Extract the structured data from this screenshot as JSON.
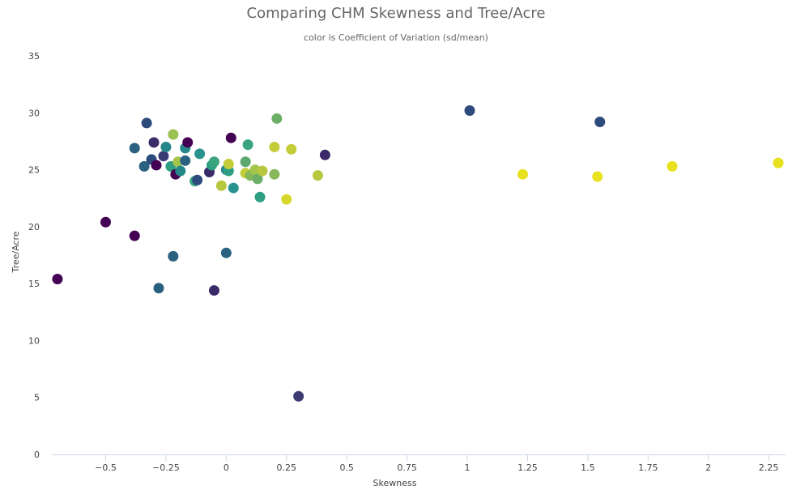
{
  "chart_data": {
    "type": "scatter",
    "title": "Comparing CHM Skewness and Tree/Acre",
    "subtitle": "color is Coefficient of Variation (sd/mean)",
    "xlabel": "Skewness",
    "ylabel": "Tree/Acre",
    "xlim": [
      -0.72,
      2.32
    ],
    "ylim": [
      0,
      35
    ],
    "x_ticks": [
      -0.5,
      -0.25,
      0,
      0.25,
      0.5,
      0.75,
      1,
      1.25,
      1.5,
      1.75,
      2,
      2.25
    ],
    "x_tick_labels": [
      "−0.5",
      "−0.25",
      "0",
      "0.25",
      "0.5",
      "0.75",
      "1",
      "1.25",
      "1.5",
      "1.75",
      "2",
      "2.25"
    ],
    "y_ticks": [
      0,
      5,
      10,
      15,
      20,
      25,
      30,
      35
    ],
    "y_tick_labels": [
      "0",
      "5",
      "10",
      "15",
      "20",
      "25",
      "30",
      "35"
    ],
    "grid": false,
    "legend": "none",
    "color_scale": "viridis",
    "points": [
      {
        "x": -0.7,
        "y": 15.4,
        "color": "#440154"
      },
      {
        "x": -0.5,
        "y": 20.4,
        "color": "#440154"
      },
      {
        "x": -0.38,
        "y": 19.2,
        "color": "#440154"
      },
      {
        "x": -0.38,
        "y": 26.9,
        "color": "#2a6180"
      },
      {
        "x": -0.34,
        "y": 25.3,
        "color": "#2a6180"
      },
      {
        "x": -0.33,
        "y": 29.1,
        "color": "#2d4a7c"
      },
      {
        "x": -0.31,
        "y": 25.9,
        "color": "#2d4a7c"
      },
      {
        "x": -0.3,
        "y": 27.4,
        "color": "#3a2a6a"
      },
      {
        "x": -0.29,
        "y": 25.4,
        "color": "#440154"
      },
      {
        "x": -0.28,
        "y": 14.6,
        "color": "#2a6180"
      },
      {
        "x": -0.26,
        "y": 26.2,
        "color": "#3b3a73"
      },
      {
        "x": -0.25,
        "y": 27.0,
        "color": "#26878b"
      },
      {
        "x": -0.23,
        "y": 25.3,
        "color": "#2e9f82"
      },
      {
        "x": -0.22,
        "y": 28.1,
        "color": "#9bc052"
      },
      {
        "x": -0.22,
        "y": 17.4,
        "color": "#2a6180"
      },
      {
        "x": -0.21,
        "y": 24.6,
        "color": "#440154"
      },
      {
        "x": -0.2,
        "y": 25.7,
        "color": "#a5c44a"
      },
      {
        "x": -0.19,
        "y": 24.9,
        "color": "#26878b"
      },
      {
        "x": -0.17,
        "y": 25.8,
        "color": "#2a6180"
      },
      {
        "x": -0.17,
        "y": 26.9,
        "color": "#26878b"
      },
      {
        "x": -0.16,
        "y": 27.4,
        "color": "#440154"
      },
      {
        "x": -0.13,
        "y": 24.0,
        "color": "#37a47c"
      },
      {
        "x": -0.12,
        "y": 24.1,
        "color": "#2d4a7c"
      },
      {
        "x": -0.11,
        "y": 26.4,
        "color": "#27938c"
      },
      {
        "x": -0.07,
        "y": 24.8,
        "color": "#3a2a6a"
      },
      {
        "x": -0.06,
        "y": 25.4,
        "color": "#2e9f82"
      },
      {
        "x": -0.05,
        "y": 25.7,
        "color": "#3aa47c"
      },
      {
        "x": -0.05,
        "y": 14.4,
        "color": "#3a2a6a"
      },
      {
        "x": -0.02,
        "y": 23.6,
        "color": "#b8c83e"
      },
      {
        "x": 0.0,
        "y": 25.0,
        "color": "#26878b"
      },
      {
        "x": 0.0,
        "y": 17.7,
        "color": "#2a6180"
      },
      {
        "x": 0.01,
        "y": 24.9,
        "color": "#2e9f82"
      },
      {
        "x": 0.01,
        "y": 25.5,
        "color": "#c4cc3a"
      },
      {
        "x": 0.02,
        "y": 27.8,
        "color": "#440154"
      },
      {
        "x": 0.03,
        "y": 23.4,
        "color": "#27938c"
      },
      {
        "x": 0.08,
        "y": 25.7,
        "color": "#5ca86e"
      },
      {
        "x": 0.08,
        "y": 24.7,
        "color": "#c4cc3a"
      },
      {
        "x": 0.09,
        "y": 27.2,
        "color": "#3aa47c"
      },
      {
        "x": 0.1,
        "y": 24.5,
        "color": "#86b85a"
      },
      {
        "x": 0.12,
        "y": 25.0,
        "color": "#a5c44a"
      },
      {
        "x": 0.13,
        "y": 24.2,
        "color": "#6cae66"
      },
      {
        "x": 0.14,
        "y": 22.6,
        "color": "#2e9f82"
      },
      {
        "x": 0.15,
        "y": 24.9,
        "color": "#b8c83e"
      },
      {
        "x": 0.2,
        "y": 24.6,
        "color": "#86b85a"
      },
      {
        "x": 0.2,
        "y": 27.0,
        "color": "#c4cc3a"
      },
      {
        "x": 0.21,
        "y": 29.5,
        "color": "#6cae66"
      },
      {
        "x": 0.25,
        "y": 22.4,
        "color": "#d8d82c"
      },
      {
        "x": 0.27,
        "y": 26.8,
        "color": "#c4cc3a"
      },
      {
        "x": 0.3,
        "y": 5.1,
        "color": "#3b3a73"
      },
      {
        "x": 0.38,
        "y": 24.5,
        "color": "#b8c83e"
      },
      {
        "x": 0.41,
        "y": 26.3,
        "color": "#3a2a6a"
      },
      {
        "x": 1.01,
        "y": 30.2,
        "color": "#2d4a7c"
      },
      {
        "x": 1.23,
        "y": 24.6,
        "color": "#e8e11e"
      },
      {
        "x": 1.54,
        "y": 24.4,
        "color": "#e8e11e"
      },
      {
        "x": 1.55,
        "y": 29.2,
        "color": "#2d4a7c"
      },
      {
        "x": 1.85,
        "y": 25.3,
        "color": "#e8e11e"
      },
      {
        "x": 2.29,
        "y": 25.6,
        "color": "#e8e11e"
      }
    ]
  }
}
